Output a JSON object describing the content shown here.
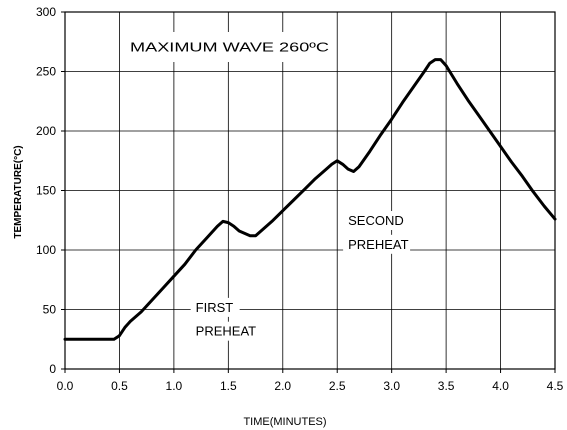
{
  "chart_data": {
    "type": "line",
    "title": "MAXIMUM WAVE 260ºC",
    "xlabel": "TIME(MINUTES)",
    "ylabel": "TEMPERATURE(°C)",
    "xlim": [
      0,
      4.5
    ],
    "ylim": [
      0,
      300
    ],
    "x_ticks": [
      "0.0",
      "0.5",
      "1.0",
      "1.5",
      "2.0",
      "2.5",
      "3.0",
      "3.5",
      "4.0",
      "4.5"
    ],
    "y_ticks": [
      "0",
      "50",
      "100",
      "150",
      "200",
      "250",
      "300"
    ],
    "grid": true,
    "series": [
      {
        "x": [
          0.0,
          0.45,
          0.5,
          0.55,
          0.6,
          0.7,
          0.8,
          0.9,
          1.0,
          1.1,
          1.2,
          1.3,
          1.4,
          1.45,
          1.5,
          1.55,
          1.6,
          1.7,
          1.75,
          1.8,
          1.9,
          2.0,
          2.1,
          2.2,
          2.3,
          2.4,
          2.45,
          2.5,
          2.55,
          2.6,
          2.65,
          2.7,
          2.8,
          2.9,
          3.0,
          3.1,
          3.2,
          3.3,
          3.35,
          3.4,
          3.45,
          3.5,
          3.6,
          3.7,
          3.8,
          3.9,
          4.0,
          4.1,
          4.2,
          4.3,
          4.4,
          4.5
        ],
        "y": [
          25,
          25,
          28,
          35,
          40,
          48,
          58,
          68,
          78,
          88,
          100,
          110,
          120,
          124,
          123,
          120,
          116,
          112,
          112,
          116,
          124,
          133,
          142,
          151,
          160,
          168,
          172,
          175,
          172,
          168,
          166,
          170,
          183,
          197,
          210,
          224,
          237,
          250,
          257,
          260,
          260,
          255,
          240,
          226,
          213,
          200,
          187,
          174,
          162,
          149,
          137,
          126
        ]
      }
    ],
    "annotations": [
      {
        "text": "FIRST",
        "x": 1.2,
        "y": 48
      },
      {
        "text": "PREHEAT",
        "x": 1.2,
        "y": 28
      },
      {
        "text": "SECOND",
        "x": 2.6,
        "y": 121
      },
      {
        "text": "PREHEAT",
        "x": 2.6,
        "y": 101
      }
    ]
  }
}
